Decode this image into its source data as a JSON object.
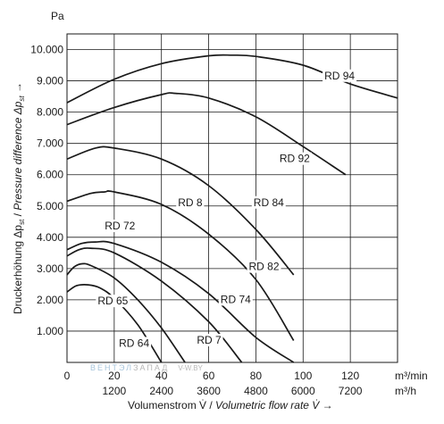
{
  "chart_data": {
    "type": "line",
    "title": "",
    "y_unit": "Pa",
    "ylabel_parts": [
      "Druckerhöhung Δp",
      "st",
      " / ",
      "Pressure difference Δp",
      "st",
      " →"
    ],
    "xlabel_parts": [
      "Volumenstrom V̇ / ",
      "Volumetric flow rate V̇",
      " →"
    ],
    "x_unit_primary": "m³/min",
    "x_unit_secondary": "m³/h",
    "xlim": [
      0,
      140
    ],
    "ylim": [
      0,
      10500
    ],
    "grid": true,
    "x_ticks_primary": [
      "0",
      "20",
      "40",
      "60",
      "80",
      "100",
      "120"
    ],
    "x_ticks_primary_values": [
      0,
      20,
      40,
      60,
      80,
      100,
      120
    ],
    "x_ticks_secondary": [
      "1200",
      "2400",
      "3600",
      "4800",
      "6000",
      "7200"
    ],
    "x_ticks_secondary_values": [
      20,
      40,
      60,
      80,
      100,
      120
    ],
    "y_ticks": [
      "1.000",
      "2.000",
      "3.000",
      "4.000",
      "5.000",
      "6.000",
      "7.000",
      "8.000",
      "9.000",
      "10.000"
    ],
    "y_ticks_values": [
      1000,
      2000,
      3000,
      4000,
      5000,
      6000,
      7000,
      8000,
      9000,
      10000
    ],
    "series": [
      {
        "name": "RD 94",
        "x": [
          0,
          20,
          40,
          60,
          70,
          80,
          100,
          120,
          140
        ],
        "y": [
          8300,
          9050,
          9550,
          9800,
          9820,
          9780,
          9500,
          8900,
          8450
        ]
      },
      {
        "name": "RD 92",
        "x": [
          0,
          20,
          40,
          46,
          60,
          80,
          100,
          118
        ],
        "y": [
          7600,
          8150,
          8560,
          8600,
          8450,
          7850,
          6900,
          6000
        ]
      },
      {
        "name": "RD 84",
        "x": [
          0,
          12,
          20,
          40,
          60,
          80,
          96
        ],
        "y": [
          6500,
          6850,
          6850,
          6500,
          5650,
          4250,
          2800
        ]
      },
      {
        "name": "RD 82",
        "x": [
          0,
          10,
          16,
          20,
          40,
          60,
          80,
          96
        ],
        "y": [
          5150,
          5400,
          5450,
          5450,
          5050,
          4100,
          2650,
          700
        ]
      },
      {
        "name": "RD 74",
        "x": [
          0,
          6,
          12,
          20,
          40,
          60,
          80,
          96
        ],
        "y": [
          3600,
          3800,
          3850,
          3800,
          3200,
          2200,
          800,
          0
        ]
      },
      {
        "name": "RD 72",
        "x": [
          0,
          5,
          10,
          20,
          40,
          60,
          74
        ],
        "y": [
          3400,
          3600,
          3650,
          3500,
          2600,
          1300,
          0
        ]
      },
      {
        "name": "RD 65",
        "x": [
          0,
          3,
          6,
          10,
          20,
          30,
          40,
          50
        ],
        "y": [
          2800,
          3050,
          3150,
          3100,
          2700,
          2000,
          1100,
          0
        ]
      },
      {
        "name": "RD 64",
        "x": [
          0,
          4,
          9,
          14,
          20,
          30,
          40
        ],
        "y": [
          2250,
          2450,
          2480,
          2380,
          2050,
          1200,
          0
        ]
      }
    ],
    "curve_labels": [
      {
        "text": "RD 94",
        "x": 109,
        "y": 9050
      },
      {
        "text": "RD 92",
        "x": 90,
        "y": 6400
      },
      {
        "text": "RD 84",
        "x": 79,
        "y": 5000
      },
      {
        "text": "RD 8",
        "x": 47,
        "y": 5000
      },
      {
        "text": "RD 82",
        "x": 77,
        "y": 2950
      },
      {
        "text": "RD 74",
        "x": 65,
        "y": 1900
      },
      {
        "text": "RD 72",
        "x": 16,
        "y": 4250
      },
      {
        "text": "RD 65",
        "x": 13,
        "y": 1850
      },
      {
        "text": "RD 64",
        "x": 22,
        "y": 500
      },
      {
        "text": "RD 7",
        "x": 55,
        "y": 600
      }
    ],
    "watermark": {
      "left": "ВЕНТЭЛ",
      "mid": "ЗАПАД",
      "right": "V-W.BY"
    }
  }
}
